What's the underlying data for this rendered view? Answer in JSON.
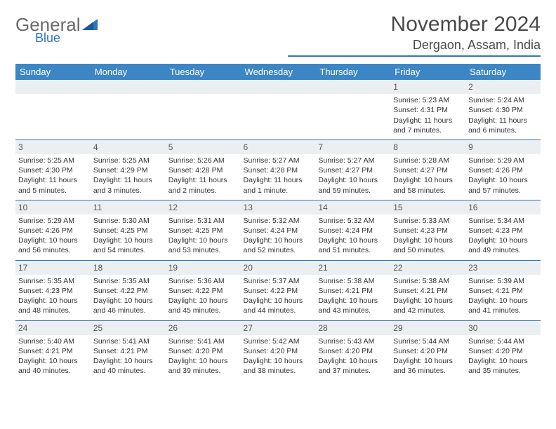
{
  "logo": {
    "word1": "General",
    "word2": "Blue"
  },
  "title": "November 2024",
  "location": "Dergaon, Assam, India",
  "colors": {
    "header_bg": "#3d86c6",
    "accent": "#2b76bd",
    "daybar": "#eceff1",
    "text": "#333333",
    "logo_gray": "#6a6a6a"
  },
  "weekdays": [
    "Sunday",
    "Monday",
    "Tuesday",
    "Wednesday",
    "Thursday",
    "Friday",
    "Saturday"
  ],
  "weeks": [
    [
      null,
      null,
      null,
      null,
      null,
      {
        "n": "1",
        "sr": "Sunrise: 5:23 AM",
        "ss": "Sunset: 4:31 PM",
        "dl": "Daylight: 11 hours and 7 minutes."
      },
      {
        "n": "2",
        "sr": "Sunrise: 5:24 AM",
        "ss": "Sunset: 4:30 PM",
        "dl": "Daylight: 11 hours and 6 minutes."
      }
    ],
    [
      {
        "n": "3",
        "sr": "Sunrise: 5:25 AM",
        "ss": "Sunset: 4:30 PM",
        "dl": "Daylight: 11 hours and 5 minutes."
      },
      {
        "n": "4",
        "sr": "Sunrise: 5:25 AM",
        "ss": "Sunset: 4:29 PM",
        "dl": "Daylight: 11 hours and 3 minutes."
      },
      {
        "n": "5",
        "sr": "Sunrise: 5:26 AM",
        "ss": "Sunset: 4:28 PM",
        "dl": "Daylight: 11 hours and 2 minutes."
      },
      {
        "n": "6",
        "sr": "Sunrise: 5:27 AM",
        "ss": "Sunset: 4:28 PM",
        "dl": "Daylight: 11 hours and 1 minute."
      },
      {
        "n": "7",
        "sr": "Sunrise: 5:27 AM",
        "ss": "Sunset: 4:27 PM",
        "dl": "Daylight: 10 hours and 59 minutes."
      },
      {
        "n": "8",
        "sr": "Sunrise: 5:28 AM",
        "ss": "Sunset: 4:27 PM",
        "dl": "Daylight: 10 hours and 58 minutes."
      },
      {
        "n": "9",
        "sr": "Sunrise: 5:29 AM",
        "ss": "Sunset: 4:26 PM",
        "dl": "Daylight: 10 hours and 57 minutes."
      }
    ],
    [
      {
        "n": "10",
        "sr": "Sunrise: 5:29 AM",
        "ss": "Sunset: 4:26 PM",
        "dl": "Daylight: 10 hours and 56 minutes."
      },
      {
        "n": "11",
        "sr": "Sunrise: 5:30 AM",
        "ss": "Sunset: 4:25 PM",
        "dl": "Daylight: 10 hours and 54 minutes."
      },
      {
        "n": "12",
        "sr": "Sunrise: 5:31 AM",
        "ss": "Sunset: 4:25 PM",
        "dl": "Daylight: 10 hours and 53 minutes."
      },
      {
        "n": "13",
        "sr": "Sunrise: 5:32 AM",
        "ss": "Sunset: 4:24 PM",
        "dl": "Daylight: 10 hours and 52 minutes."
      },
      {
        "n": "14",
        "sr": "Sunrise: 5:32 AM",
        "ss": "Sunset: 4:24 PM",
        "dl": "Daylight: 10 hours and 51 minutes."
      },
      {
        "n": "15",
        "sr": "Sunrise: 5:33 AM",
        "ss": "Sunset: 4:23 PM",
        "dl": "Daylight: 10 hours and 50 minutes."
      },
      {
        "n": "16",
        "sr": "Sunrise: 5:34 AM",
        "ss": "Sunset: 4:23 PM",
        "dl": "Daylight: 10 hours and 49 minutes."
      }
    ],
    [
      {
        "n": "17",
        "sr": "Sunrise: 5:35 AM",
        "ss": "Sunset: 4:23 PM",
        "dl": "Daylight: 10 hours and 48 minutes."
      },
      {
        "n": "18",
        "sr": "Sunrise: 5:35 AM",
        "ss": "Sunset: 4:22 PM",
        "dl": "Daylight: 10 hours and 46 minutes."
      },
      {
        "n": "19",
        "sr": "Sunrise: 5:36 AM",
        "ss": "Sunset: 4:22 PM",
        "dl": "Daylight: 10 hours and 45 minutes."
      },
      {
        "n": "20",
        "sr": "Sunrise: 5:37 AM",
        "ss": "Sunset: 4:22 PM",
        "dl": "Daylight: 10 hours and 44 minutes."
      },
      {
        "n": "21",
        "sr": "Sunrise: 5:38 AM",
        "ss": "Sunset: 4:21 PM",
        "dl": "Daylight: 10 hours and 43 minutes."
      },
      {
        "n": "22",
        "sr": "Sunrise: 5:38 AM",
        "ss": "Sunset: 4:21 PM",
        "dl": "Daylight: 10 hours and 42 minutes."
      },
      {
        "n": "23",
        "sr": "Sunrise: 5:39 AM",
        "ss": "Sunset: 4:21 PM",
        "dl": "Daylight: 10 hours and 41 minutes."
      }
    ],
    [
      {
        "n": "24",
        "sr": "Sunrise: 5:40 AM",
        "ss": "Sunset: 4:21 PM",
        "dl": "Daylight: 10 hours and 40 minutes."
      },
      {
        "n": "25",
        "sr": "Sunrise: 5:41 AM",
        "ss": "Sunset: 4:21 PM",
        "dl": "Daylight: 10 hours and 40 minutes."
      },
      {
        "n": "26",
        "sr": "Sunrise: 5:41 AM",
        "ss": "Sunset: 4:20 PM",
        "dl": "Daylight: 10 hours and 39 minutes."
      },
      {
        "n": "27",
        "sr": "Sunrise: 5:42 AM",
        "ss": "Sunset: 4:20 PM",
        "dl": "Daylight: 10 hours and 38 minutes."
      },
      {
        "n": "28",
        "sr": "Sunrise: 5:43 AM",
        "ss": "Sunset: 4:20 PM",
        "dl": "Daylight: 10 hours and 37 minutes."
      },
      {
        "n": "29",
        "sr": "Sunrise: 5:44 AM",
        "ss": "Sunset: 4:20 PM",
        "dl": "Daylight: 10 hours and 36 minutes."
      },
      {
        "n": "30",
        "sr": "Sunrise: 5:44 AM",
        "ss": "Sunset: 4:20 PM",
        "dl": "Daylight: 10 hours and 35 minutes."
      }
    ]
  ]
}
